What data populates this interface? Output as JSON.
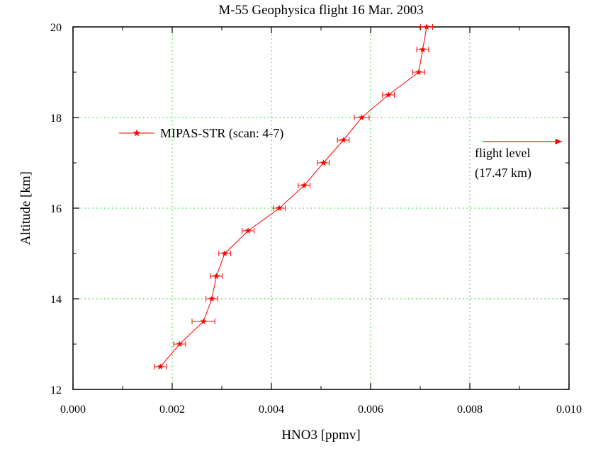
{
  "chart_data": {
    "type": "line",
    "title": "M-55 Geophysica flight 16 Mar. 2003",
    "xlabel": "HNO3 [ppmv]",
    "ylabel": "Altitude [km]",
    "xlim": [
      0.0,
      0.01
    ],
    "ylim": [
      12,
      20
    ],
    "x_ticks": [
      "0.000",
      "0.002",
      "0.004",
      "0.006",
      "0.008",
      "0.010"
    ],
    "y_ticks": [
      "12",
      "14",
      "16",
      "18",
      "20"
    ],
    "grid": true,
    "legend_position": "upper-left",
    "series": [
      {
        "name": "MIPAS-STR (scan: 4-7)",
        "color": "#ff0000",
        "marker": "star",
        "x": [
          0.00176,
          0.00215,
          0.00263,
          0.0028,
          0.00289,
          0.00306,
          0.00353,
          0.00416,
          0.00466,
          0.00505,
          0.00545,
          0.00582,
          0.00636,
          0.00697,
          0.00705,
          0.00713
        ],
        "y": [
          12.5,
          13.0,
          13.5,
          14.0,
          14.5,
          15.0,
          15.5,
          16.0,
          16.5,
          17.0,
          17.5,
          18.0,
          18.5,
          19.0,
          19.5,
          20.0
        ],
        "xerr": [
          0.00012,
          0.00012,
          0.00023,
          0.00012,
          0.00012,
          0.00012,
          0.00012,
          0.00012,
          0.00012,
          0.00012,
          0.00012,
          0.00015,
          0.00012,
          0.00012,
          0.00012,
          0.00012
        ]
      }
    ],
    "annotations": [
      {
        "text_lines": [
          "flight level",
          "(17.47 km)"
        ],
        "x_data": 0.0081,
        "y_data": 17.22
      }
    ],
    "flight_level_arrow": {
      "y": 17.47,
      "x_start": 0.00826,
      "x_end": 0.00985
    }
  }
}
